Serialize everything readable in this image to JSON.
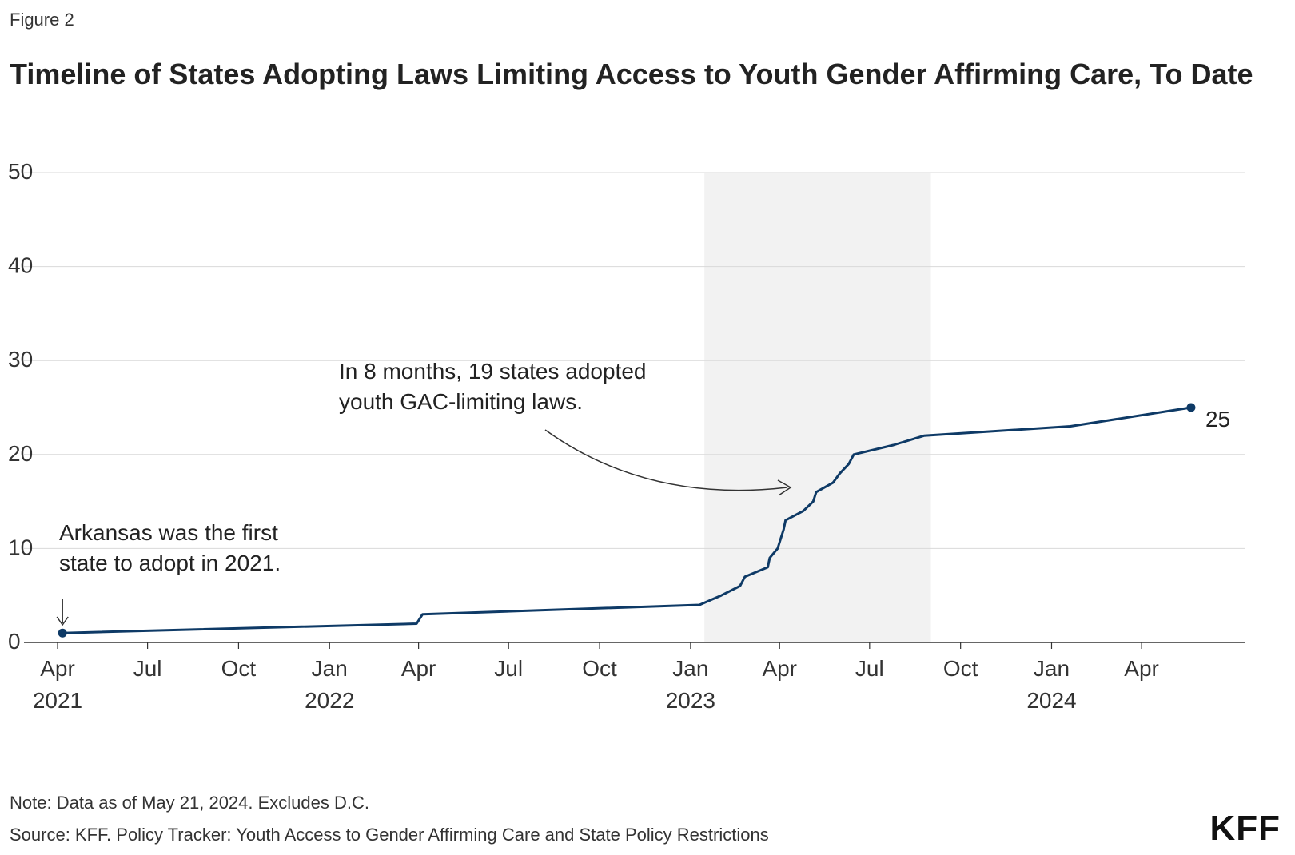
{
  "figure_label": "Figure 2",
  "title": "Timeline of States Adopting Laws Limiting Access to Youth Gender Affirming Care, To Date",
  "note": "Note: Data as of May 21, 2024. Excludes D.C.",
  "source": "Source: KFF. Policy Tracker: Youth Access to Gender Affirming Care and State Policy Restrictions",
  "logo": "KFF",
  "colors": {
    "line": "#0e3a66",
    "shade": "#f2f2f2",
    "grid": "#d9d9d9",
    "axis": "#333333"
  },
  "chart_data": {
    "type": "line",
    "title": "Timeline of States Adopting Laws Limiting Access to Youth Gender Affirming Care, To Date",
    "xlabel": "",
    "ylabel": "",
    "ylim": [
      0,
      50
    ],
    "y_ticks": [
      "0",
      "10",
      "20",
      "30",
      "40",
      "50"
    ],
    "x_range": [
      "2021-04-01",
      "2024-07-15"
    ],
    "x_ticks": [
      {
        "date": "2021-04-01",
        "label": "Apr",
        "year": "2021"
      },
      {
        "date": "2021-07-01",
        "label": "Jul",
        "year": ""
      },
      {
        "date": "2021-10-01",
        "label": "Oct",
        "year": ""
      },
      {
        "date": "2022-01-01",
        "label": "Jan",
        "year": "2022"
      },
      {
        "date": "2022-04-01",
        "label": "Apr",
        "year": ""
      },
      {
        "date": "2022-07-01",
        "label": "Jul",
        "year": ""
      },
      {
        "date": "2022-10-01",
        "label": "Oct",
        "year": ""
      },
      {
        "date": "2023-01-01",
        "label": "Jan",
        "year": "2023"
      },
      {
        "date": "2023-04-01",
        "label": "Apr",
        "year": ""
      },
      {
        "date": "2023-07-01",
        "label": "Jul",
        "year": ""
      },
      {
        "date": "2023-10-01",
        "label": "Oct",
        "year": ""
      },
      {
        "date": "2024-01-01",
        "label": "Jan",
        "year": "2024"
      },
      {
        "date": "2024-04-01",
        "label": "Apr",
        "year": ""
      }
    ],
    "shaded_period": [
      "2023-01-15",
      "2023-09-01"
    ],
    "series": [
      {
        "name": "States adopting laws",
        "points": [
          [
            "2021-04-06",
            1
          ],
          [
            "2022-03-30",
            2
          ],
          [
            "2022-04-05",
            3
          ],
          [
            "2023-01-10",
            4
          ],
          [
            "2023-02-01",
            5
          ],
          [
            "2023-02-20",
            6
          ],
          [
            "2023-02-25",
            7
          ],
          [
            "2023-03-20",
            8
          ],
          [
            "2023-03-22",
            9
          ],
          [
            "2023-03-30",
            10
          ],
          [
            "2023-04-02",
            11
          ],
          [
            "2023-04-05",
            12
          ],
          [
            "2023-04-07",
            13
          ],
          [
            "2023-04-25",
            14
          ],
          [
            "2023-05-05",
            15
          ],
          [
            "2023-05-08",
            16
          ],
          [
            "2023-05-25",
            17
          ],
          [
            "2023-06-01",
            18
          ],
          [
            "2023-06-10",
            19
          ],
          [
            "2023-06-15",
            20
          ],
          [
            "2023-07-25",
            21
          ],
          [
            "2023-08-25",
            22
          ],
          [
            "2024-01-20",
            23
          ],
          [
            "2024-05-21",
            25
          ]
        ]
      }
    ],
    "end_label": "25",
    "annotations": [
      {
        "text": [
          "In 8 months, 19 states adopted",
          "youth GAC-limiting laws."
        ]
      },
      {
        "text": [
          "Arkansas was the first",
          "state to adopt in 2021."
        ]
      }
    ]
  }
}
